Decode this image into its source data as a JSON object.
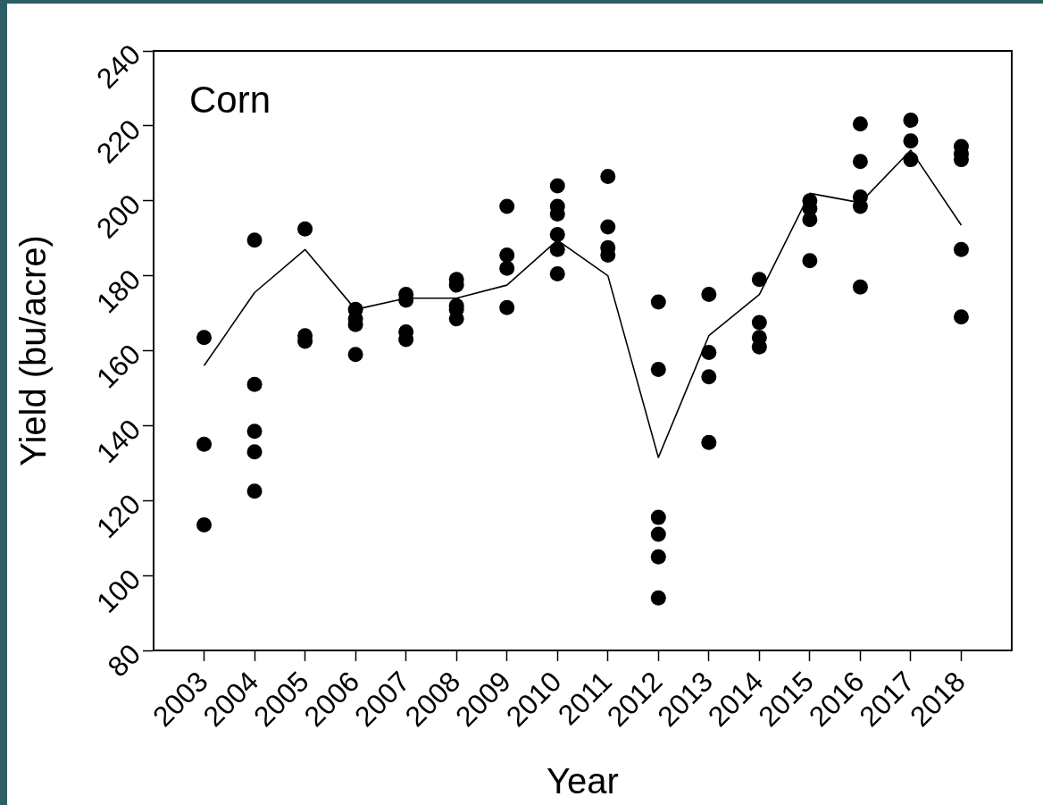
{
  "chart_data": {
    "type": "scatter",
    "title": "Corn",
    "xlabel": "Year",
    "ylabel": "Yield (bu/acre)",
    "xlim": [
      2002,
      2019
    ],
    "xticks": [
      2003,
      2004,
      2005,
      2006,
      2007,
      2008,
      2009,
      2010,
      2011,
      2012,
      2013,
      2014,
      2015,
      2016,
      2017,
      2018
    ],
    "ylim": [
      80,
      240
    ],
    "yticks": [
      80,
      100,
      120,
      140,
      160,
      180,
      200,
      220,
      240
    ],
    "marker": "circle",
    "series": [
      {
        "color": "#000000",
        "x": [
          2003,
          2003,
          2003,
          2004,
          2004,
          2004,
          2004,
          2004,
          2005,
          2005,
          2005,
          2006,
          2006,
          2006,
          2006,
          2007,
          2007,
          2007,
          2007,
          2008,
          2008,
          2008,
          2008,
          2008,
          2009,
          2009,
          2009,
          2009,
          2010,
          2010,
          2010,
          2010,
          2010,
          2010,
          2011,
          2011,
          2011,
          2011,
          2012,
          2012,
          2012,
          2012,
          2012,
          2012,
          2013,
          2013,
          2013,
          2013,
          2014,
          2014,
          2014,
          2014,
          2015,
          2015,
          2015,
          2015,
          2016,
          2016,
          2016,
          2016,
          2016,
          2017,
          2017,
          2017,
          2018,
          2018,
          2018,
          2018,
          2018
        ],
        "values": [
          163.5,
          135,
          113.5,
          189.5,
          151,
          138.5,
          133,
          122.5,
          192.5,
          164,
          162.5,
          171,
          168.5,
          167,
          159,
          175,
          173.5,
          165,
          163,
          179,
          177.5,
          172,
          171,
          168.5,
          198.5,
          185.5,
          182,
          171.5,
          204,
          198.5,
          196.5,
          191,
          187,
          180.5,
          206.5,
          193,
          187.5,
          185.5,
          173,
          155,
          115.5,
          111,
          105,
          94,
          175,
          159.5,
          153,
          135.5,
          179,
          167.5,
          163.5,
          161,
          200,
          198,
          195,
          184,
          220.5,
          210.5,
          201,
          198.5,
          177,
          221.5,
          216,
          211,
          214.5,
          212.5,
          211,
          187,
          169
        ]
      },
      {
        "type": "line",
        "color": "#000000",
        "marker": "none",
        "x": [
          2003,
          2004,
          2005,
          2006,
          2007,
          2008,
          2009,
          2010,
          2011,
          2012,
          2013,
          2014,
          2015,
          2016,
          2017,
          2018
        ],
        "values": [
          156,
          175.5,
          187,
          171,
          174,
          174,
          177.5,
          189.5,
          180,
          131.5,
          164,
          175,
          202,
          199.5,
          213.5,
          193.5
        ]
      }
    ]
  }
}
